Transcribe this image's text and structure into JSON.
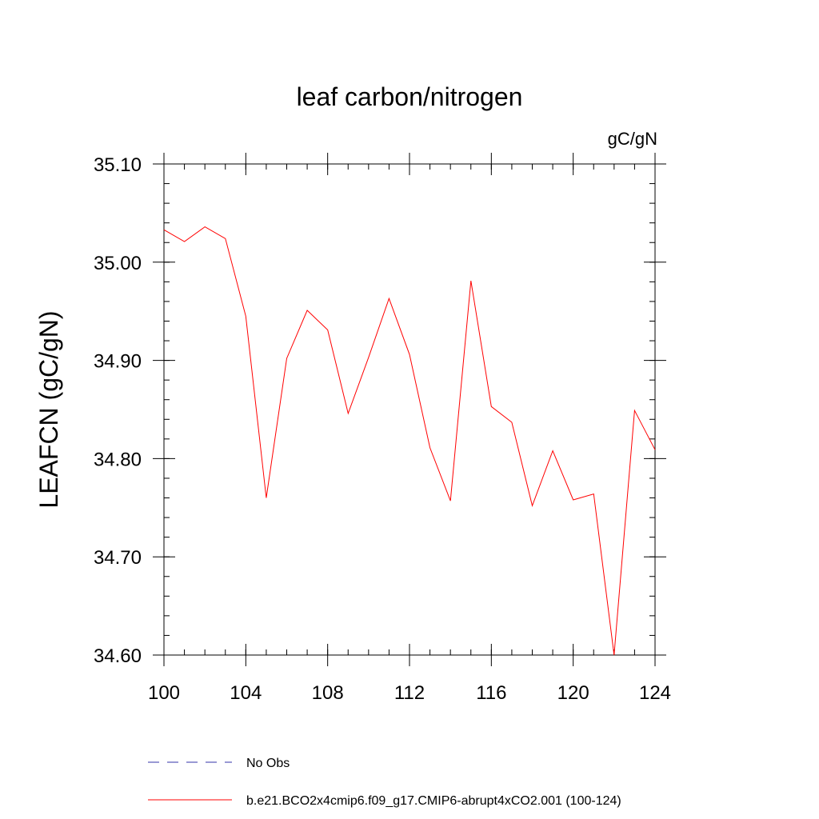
{
  "chart_data": {
    "type": "line",
    "title": "leaf carbon/nitrogen",
    "units_label": "gC/gN",
    "ylabel": "LEAFCN  (gC/gN)",
    "xlabel": "",
    "xlim": [
      100,
      124
    ],
    "ylim": [
      34.6,
      35.1
    ],
    "x_ticks": [
      100,
      104,
      108,
      112,
      116,
      120,
      124
    ],
    "x_tick_labels": [
      "100",
      "104",
      "108",
      "112",
      "116",
      "120",
      "124"
    ],
    "y_ticks": [
      34.6,
      34.7,
      34.8,
      34.9,
      35.0,
      35.1
    ],
    "y_tick_labels": [
      "34.60",
      "34.70",
      "34.80",
      "34.90",
      "35.00",
      "35.10"
    ],
    "x_minor_step": 1,
    "y_minor_step": 0.02,
    "grid": false,
    "legend_position": "bottom",
    "series": [
      {
        "name": "b.e21.BCO2x4cmip6.f09_g17.CMIP6-abrupt4xCO2.001 (100-124)",
        "color": "#ff0000",
        "line_style": "solid",
        "x": [
          100,
          101,
          102,
          103,
          104,
          105,
          106,
          107,
          108,
          109,
          110,
          111,
          112,
          113,
          114,
          115,
          116,
          117,
          118,
          119,
          120,
          121,
          122,
          123,
          124
        ],
        "values": [
          35.033,
          35.021,
          35.036,
          35.024,
          34.945,
          34.76,
          34.902,
          34.951,
          34.931,
          34.846,
          34.903,
          34.963,
          34.906,
          34.811,
          34.757,
          34.981,
          34.853,
          34.837,
          34.752,
          34.808,
          34.758,
          34.764,
          34.6,
          34.849,
          34.809
        ]
      }
    ],
    "legend": [
      {
        "label": "No Obs",
        "color": "#3333aa",
        "line_style": "dashed"
      },
      {
        "label": "b.e21.BCO2x4cmip6.f09_g17.CMIP6-abrupt4xCO2.001 (100-124)",
        "color": "#ff0000",
        "line_style": "solid"
      }
    ]
  }
}
